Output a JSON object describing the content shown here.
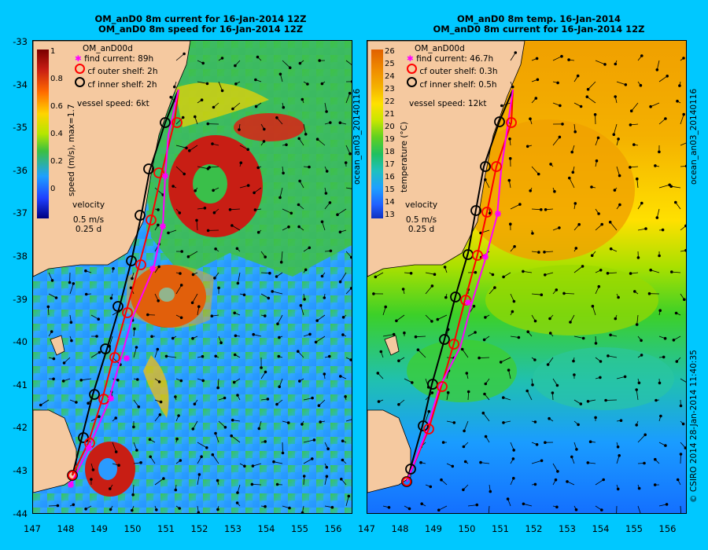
{
  "left": {
    "title_line1": "OM_anD0 8m current for 16-Jan-2014 12Z",
    "title_line2": "OM_anD0 8m speed for 16-Jan-2014 12Z",
    "model_label": "OM_anD00d",
    "legend": {
      "find_current": "find current: 89h",
      "outer_shelf": "cf outer shelf: 2h",
      "inner_shelf": "cf inner shelf: 2h",
      "vessel_speed": "vessel speed: 6kt"
    },
    "colorbar": {
      "title": "speed (m/s), max=1.7",
      "ticks": [
        "1",
        "0.8",
        "0.6",
        "0.4",
        "0.2",
        "0"
      ]
    },
    "velocity": {
      "title": "velocity",
      "scale1": "0.5 m/s",
      "scale2": "0.25 d"
    }
  },
  "right": {
    "title_line1": "OM_anD0 8m temp. 16-Jan-2014",
    "title_line2": "OM_anD0 8m current for 16-Jan-2014 12Z",
    "model_label": "OM_anD00d",
    "legend": {
      "find_current": "find current: 46.7h",
      "outer_shelf": "cf outer shelf: 0.3h",
      "inner_shelf": "cf inner shelf: 0.5h",
      "vessel_speed": "vessel speed: 12kt"
    },
    "colorbar": {
      "title": "temperature (°C)",
      "ticks": [
        "26",
        "25",
        "24",
        "23",
        "22",
        "21",
        "20",
        "19",
        "18",
        "17",
        "16",
        "15",
        "14",
        "13"
      ]
    },
    "velocity": {
      "title": "velocity",
      "scale1": "0.5 m/s",
      "scale2": "0.25 d"
    },
    "side_label": "ocean_an03_20140116"
  },
  "left_side_label": "ocean_an03_20140116",
  "footer_note": "© CSIRO 2014   28-Jan-2014 11:40:35",
  "axes": {
    "y_ticks": [
      "-33",
      "-34",
      "-35",
      "-36",
      "-37",
      "-38",
      "-39",
      "-40",
      "-41",
      "-42",
      "-43",
      "-44"
    ],
    "x_ticks": [
      "147",
      "148",
      "149",
      "150",
      "151",
      "152",
      "153",
      "154",
      "155",
      "156"
    ]
  },
  "colors": {
    "background": "#00c8ff",
    "land": "#f5c9a0",
    "find_current": "#ff00ff",
    "outer_shelf": "#ff0000",
    "inner_shelf": "#000000"
  }
}
